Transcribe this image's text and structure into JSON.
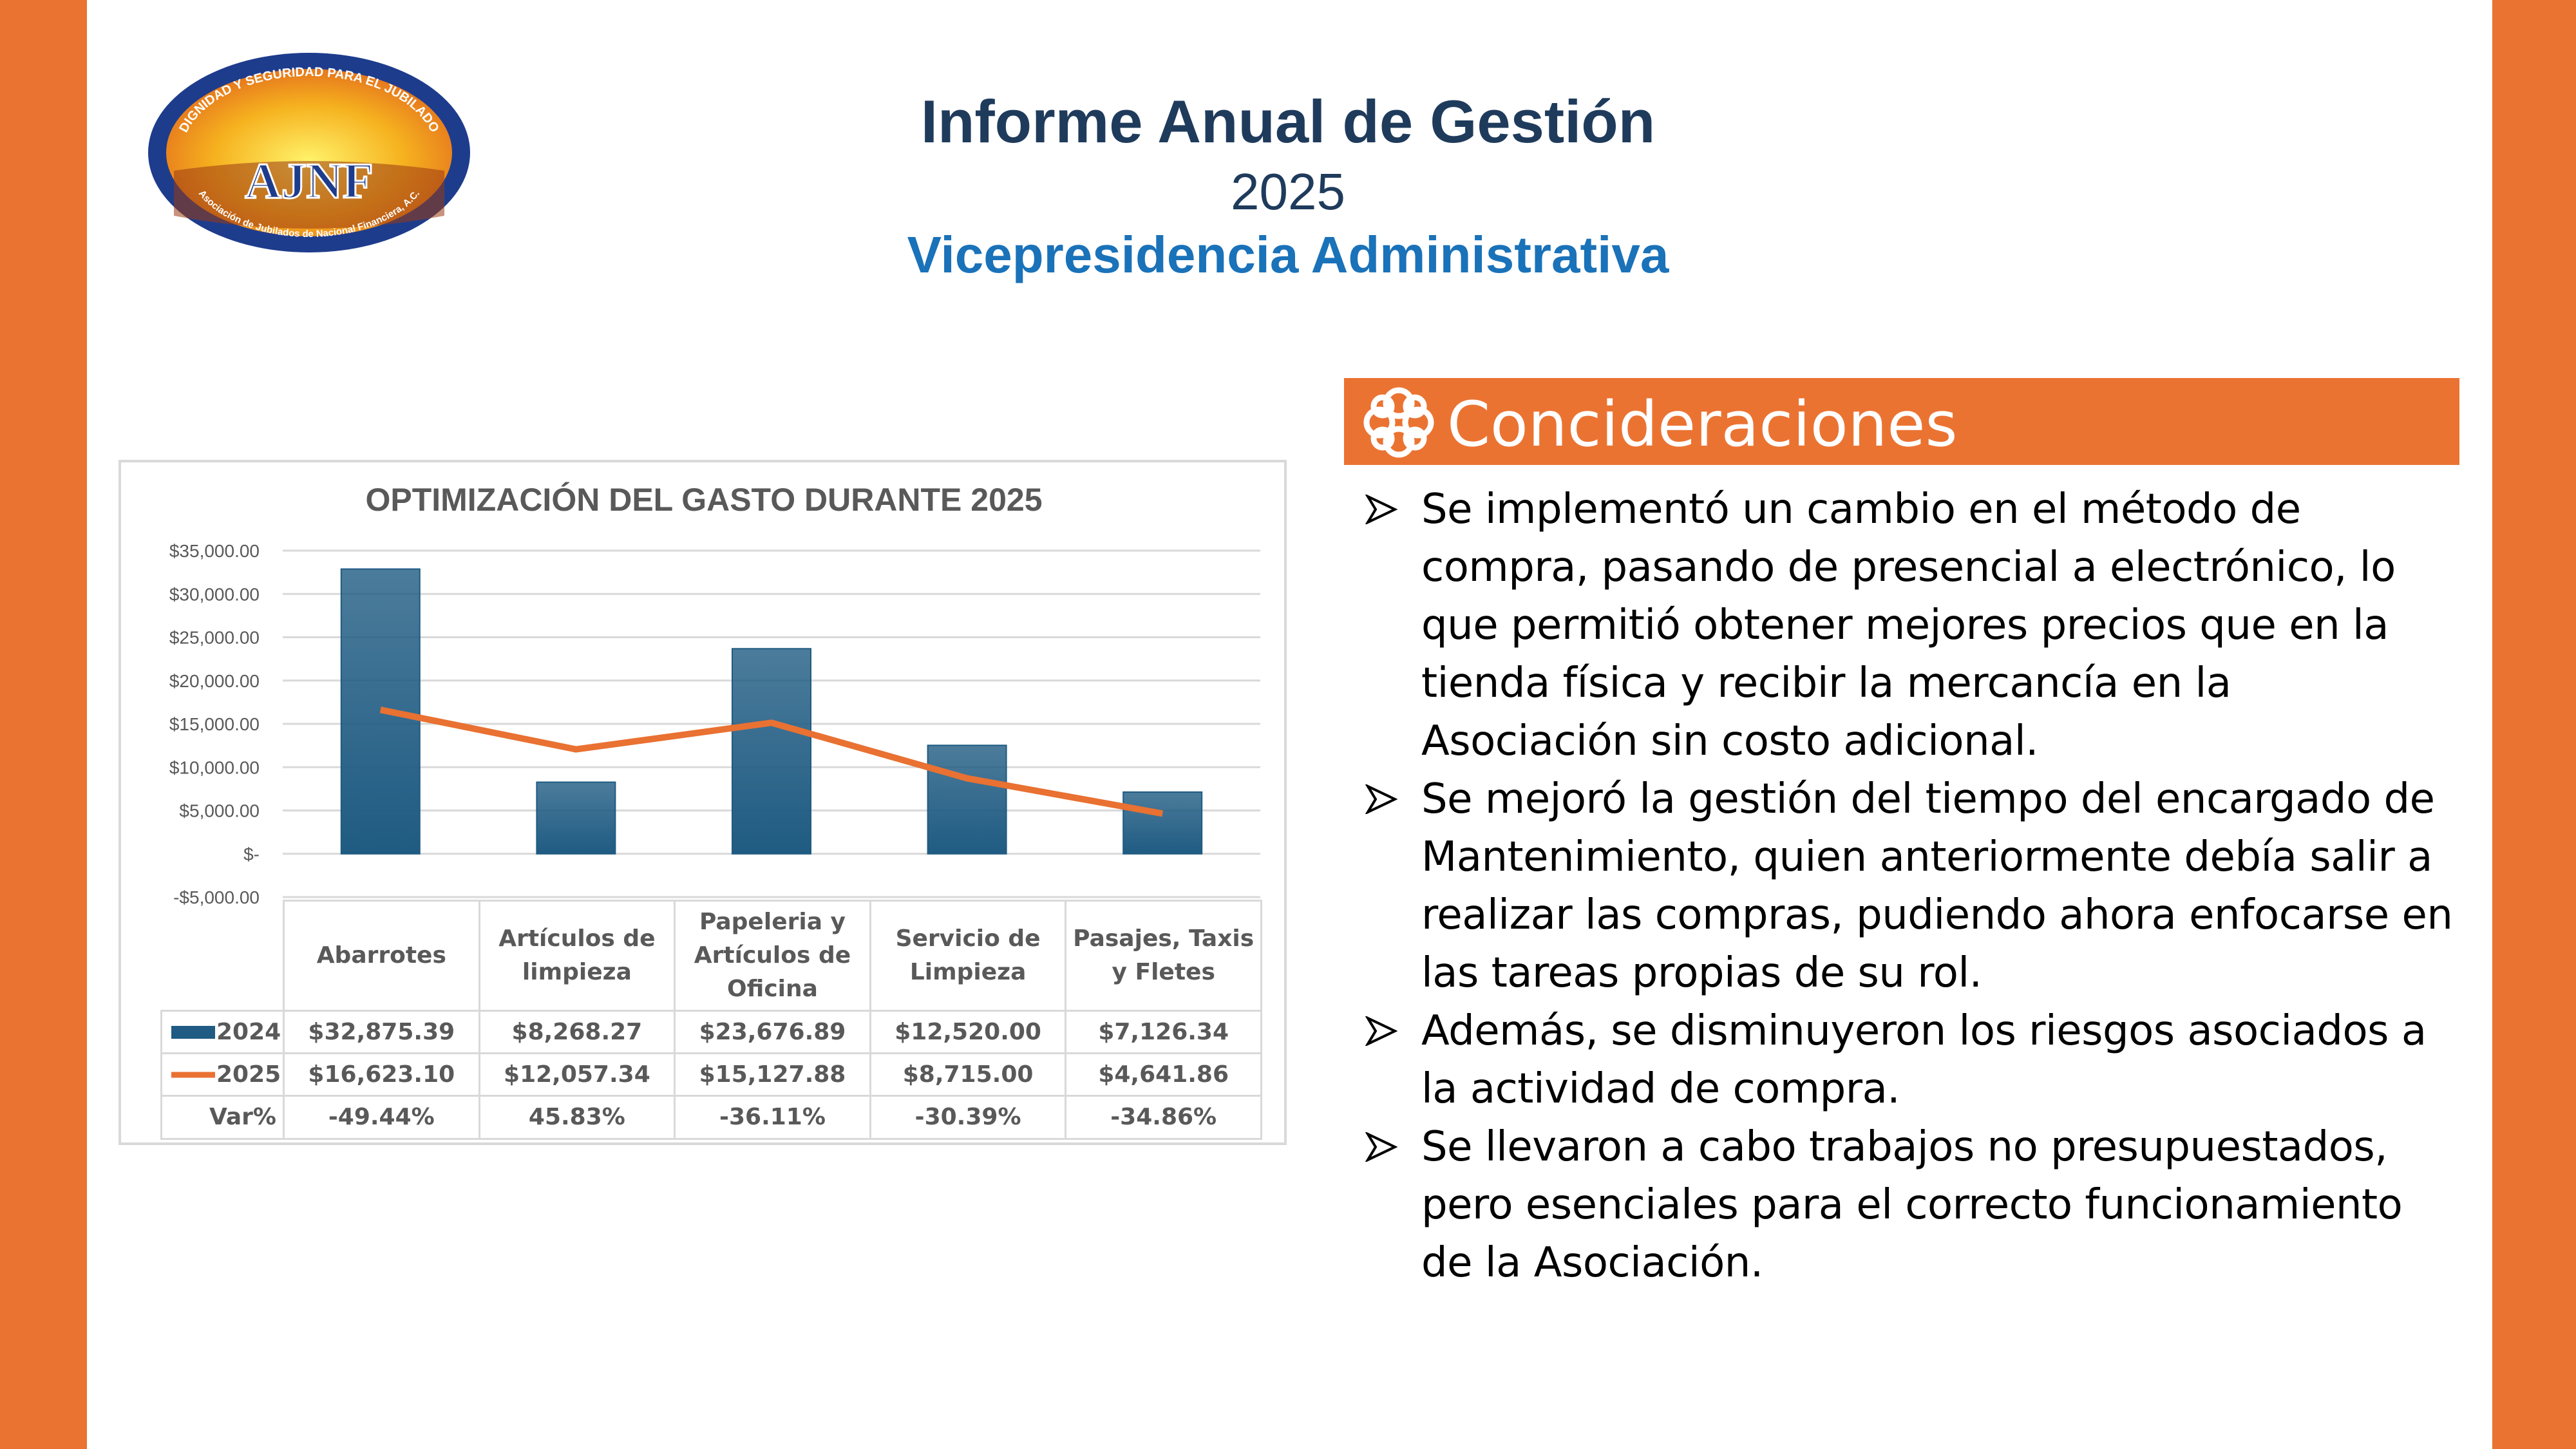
{
  "header": {
    "title": "Informe Anual de Gestión",
    "year": "2025",
    "subtitle": "Vicepresidencia Administrativa"
  },
  "logo": {
    "text": "AJNF",
    "top_text": "DIGNIDAD Y SEGURIDAD PARA EL JUBILADO",
    "bottom_text": "Asociación de Jubilados de Nacional Financiera, A.C."
  },
  "considerations": {
    "title": "Concideraciones",
    "items": [
      "Se implementó un cambio en el método de compra, pasando de presencial a electrónico, lo que permitió obtener mejores precios que en la tienda física y recibir la mercancía en la Asociación sin costo adicional.",
      "Se mejoró la gestión del tiempo del encargado de Mantenimiento, quien anteriormente debía salir a realizar las compras, pudiendo ahora enfocarse en las tareas propias de su rol.",
      "Además, se disminuyeron los riesgos asociados a la actividad de compra.",
      "Se llevaron a cabo trabajos no presupuestados, pero esenciales para el correcto funcionamiento de la Asociación."
    ]
  },
  "chart_data": {
    "type": "bar",
    "title": "OPTIMIZACIÓN DEL GASTO DURANTE 2025",
    "categories": [
      "Abarrotes",
      "Artículos de limpieza",
      "Papeleria y Artículos de Oficina",
      "Servicio de Limpieza",
      "Pasajes, Taxis y Fletes"
    ],
    "series": [
      {
        "name": "2024",
        "type": "bar",
        "color": "#1f5b82",
        "values": [
          32875.39,
          8268.27,
          23676.89,
          12520.0,
          7126.34
        ],
        "value_labels": [
          "$32,875.39",
          "$8,268.27",
          "$23,676.89",
          "$12,520.00",
          "$7,126.34"
        ]
      },
      {
        "name": "2025",
        "type": "line",
        "color": "#e97132",
        "values": [
          16623.1,
          12057.34,
          15127.88,
          8715.0,
          4641.86
        ],
        "value_labels": [
          "$16,623.10",
          "$12,057.34",
          "$15,127.88",
          "$8,715.00",
          "$4,641.86"
        ]
      }
    ],
    "variation": {
      "name": "Var%",
      "value_labels": [
        "-49.44%",
        "45.83%",
        "-36.11%",
        "-30.39%",
        "-34.86%"
      ]
    },
    "ylim": [
      -5000,
      35000
    ],
    "yticks": [
      {
        "value": -5000,
        "label": "-$5,000.00"
      },
      {
        "value": 0,
        "label": "$-"
      },
      {
        "value": 5000,
        "label": "$5,000.00"
      },
      {
        "value": 10000,
        "label": "$10,000.00"
      },
      {
        "value": 15000,
        "label": "$15,000.00"
      },
      {
        "value": 20000,
        "label": "$20,000.00"
      },
      {
        "value": 25000,
        "label": "$25,000.00"
      },
      {
        "value": 30000,
        "label": "$30,000.00"
      },
      {
        "value": 35000,
        "label": "$35,000.00"
      }
    ],
    "grid": true
  }
}
